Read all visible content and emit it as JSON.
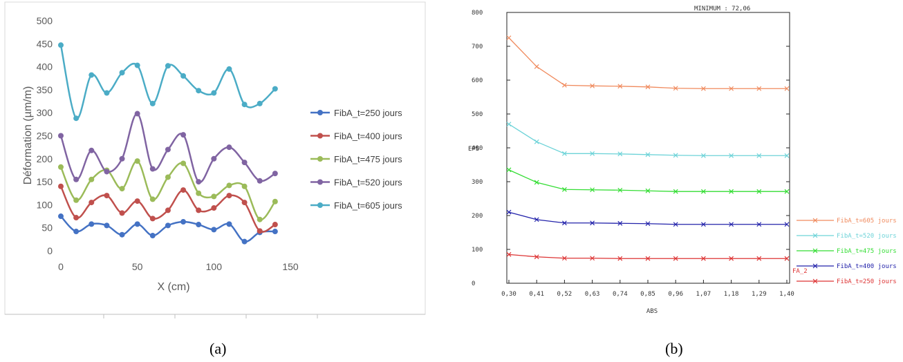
{
  "captions": {
    "a": "(a)",
    "b": "(b)"
  },
  "chart_data": [
    {
      "type": "line",
      "xlabel": "X (cm)",
      "ylabel": "Déformation (µm/m)",
      "xlim": [
        0,
        150
      ],
      "ylim": [
        0,
        500
      ],
      "xticks": [
        "0",
        "50",
        "100",
        "150"
      ],
      "yticks": [
        "0",
        "50",
        "100",
        "150",
        "200",
        "250",
        "300",
        "350",
        "400",
        "450",
        "500"
      ],
      "grid": false,
      "legend": "right",
      "x": [
        0,
        10,
        20,
        30,
        40,
        50,
        60,
        70,
        80,
        90,
        100,
        110,
        120,
        130,
        140
      ],
      "series": [
        {
          "name": "FibA_t=250 jours",
          "color": "#4472c4",
          "values": [
            75,
            42,
            58,
            55,
            35,
            58,
            33,
            55,
            63,
            57,
            46,
            58,
            20,
            40,
            42
          ]
        },
        {
          "name": "FibA_t=400 jours",
          "color": "#c0504d",
          "values": [
            140,
            72,
            105,
            120,
            82,
            108,
            70,
            88,
            132,
            88,
            93,
            120,
            105,
            43,
            57
          ]
        },
        {
          "name": "FibA_t=475 jours",
          "color": "#9bbb59",
          "values": [
            182,
            110,
            155,
            175,
            135,
            195,
            112,
            160,
            190,
            125,
            118,
            142,
            140,
            68,
            107
          ]
        },
        {
          "name": "FibA_t=520 jours",
          "color": "#8064a2",
          "values": [
            250,
            155,
            218,
            172,
            200,
            298,
            178,
            220,
            252,
            150,
            200,
            225,
            192,
            152,
            168
          ]
        },
        {
          "name": "FibA_t=605 jours",
          "color": "#4bacc6",
          "values": [
            447,
            288,
            382,
            343,
            387,
            403,
            320,
            402,
            380,
            348,
            343,
            395,
            318,
            320,
            352
          ]
        }
      ]
    },
    {
      "type": "line",
      "header_text": "MINIMUM : 72,06",
      "xlabel": "ABS",
      "ylabel": "EPS",
      "xlim": [
        0.25,
        1.45
      ],
      "ylim": [
        0,
        800
      ],
      "xticks": [
        "0,30",
        "0,41",
        "0,52",
        "0,63",
        "0,74",
        "0,85",
        "0,96",
        "1,07",
        "1,18",
        "1,29",
        "1,40"
      ],
      "yticks": [
        "0",
        "100",
        "200",
        "300",
        "400",
        "500",
        "600",
        "700",
        "800"
      ],
      "grid": false,
      "legend": "right",
      "annotation": "FA_2",
      "x": [
        0.3,
        0.41,
        0.52,
        0.63,
        0.74,
        0.85,
        0.96,
        1.07,
        1.18,
        1.29,
        1.4
      ],
      "series": [
        {
          "name": "FibA_t=605 jours",
          "color": "#f08a5d",
          "values": [
            725,
            640,
            585,
            583,
            582,
            580,
            576,
            575,
            575,
            575,
            575
          ]
        },
        {
          "name": "FibA_t=520 jours",
          "color": "#6dd3d8",
          "values": [
            470,
            418,
            383,
            383,
            382,
            380,
            378,
            377,
            377,
            377,
            377
          ]
        },
        {
          "name": "FibA_t=475 jours",
          "color": "#33dd33",
          "values": [
            335,
            298,
            277,
            276,
            275,
            273,
            271,
            271,
            271,
            271,
            271
          ]
        },
        {
          "name": "FibA_t=400 jours",
          "color": "#2222aa",
          "values": [
            210,
            188,
            178,
            178,
            177,
            176,
            174,
            174,
            174,
            174,
            174
          ]
        },
        {
          "name": "FibA_t=250 jours",
          "color": "#dd3333",
          "values": [
            85,
            78,
            74,
            74,
            73,
            73,
            73,
            73,
            73,
            73,
            73
          ]
        }
      ]
    }
  ]
}
